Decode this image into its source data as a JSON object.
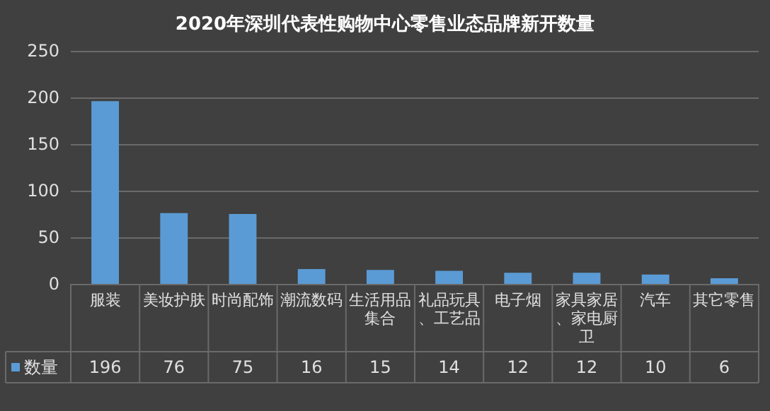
{
  "chart_data": {
    "type": "bar",
    "title": "2020年深圳代表性购物中心零售业态品牌新开数量",
    "categories": [
      "服装",
      "美妆护肤",
      "时尚配饰",
      "潮流数码",
      "生活用品集合",
      "礼品玩具、工艺品",
      "电子烟",
      "家具家居、家电厨卫",
      "汽车",
      "其它零售"
    ],
    "series": [
      {
        "name": "数量",
        "color": "#5b9bd5",
        "values": [
          196,
          76,
          75,
          16,
          15,
          14,
          12,
          12,
          10,
          6
        ]
      }
    ],
    "ylim": [
      0,
      250
    ],
    "yticks": [
      0,
      50,
      100,
      150,
      200,
      250
    ],
    "grid": "y",
    "data_labels": true
  }
}
